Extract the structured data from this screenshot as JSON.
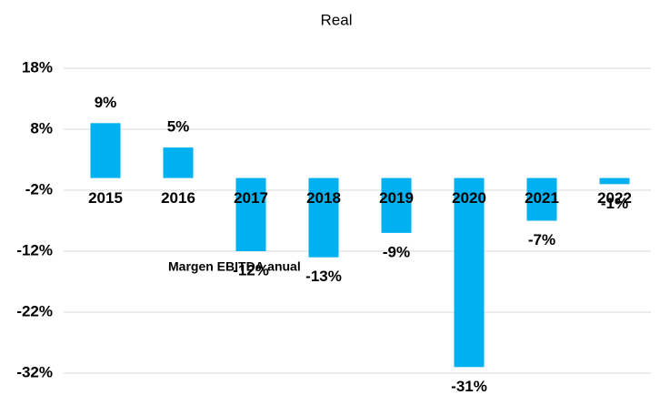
{
  "chart_data": {
    "type": "bar",
    "title": "Real",
    "annotation": "Margen EBITDA anual",
    "categories": [
      "2015",
      "2016",
      "2017",
      "2018",
      "2019",
      "2020",
      "2021",
      "2022"
    ],
    "values": [
      9,
      5,
      -12,
      -13,
      -9,
      -31,
      -7,
      -1
    ],
    "value_labels": [
      "9%",
      "5%",
      "-12%",
      "-13%",
      "-9%",
      "-31%",
      "-7%",
      "-1%"
    ],
    "color": "#00b0f0",
    "ylim": [
      -32,
      18
    ],
    "yticks": [
      {
        "value": 18,
        "label": "18%"
      },
      {
        "value": 8,
        "label": "8%"
      },
      {
        "value": -2,
        "label": "-2%"
      },
      {
        "value": -12,
        "label": "-12%"
      },
      {
        "value": -22,
        "label": "-22%"
      },
      {
        "value": -32,
        "label": "-32%"
      }
    ],
    "grid": true
  }
}
